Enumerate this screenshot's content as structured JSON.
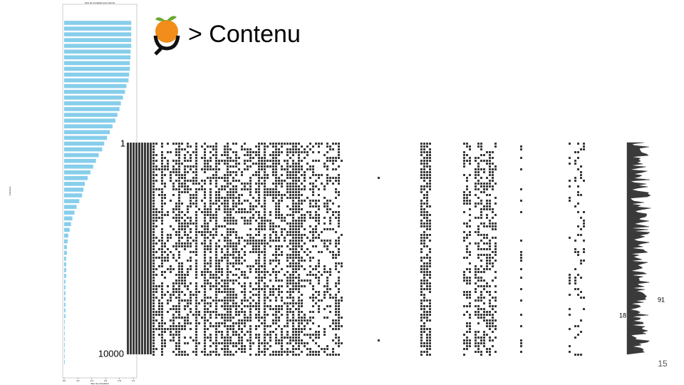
{
  "slide": {
    "title": "> Contenu",
    "page_number": "15"
  },
  "chart_data": {
    "type": "bar",
    "orientation": "horizontal",
    "title": "Taux de complétion par colonne",
    "x_label": "Taux de complétion",
    "y_label": "Colonnes",
    "categories": [
      null,
      null,
      null,
      null,
      null,
      null,
      null,
      null,
      null,
      null,
      null,
      null,
      null,
      null,
      null,
      null,
      null,
      null,
      null,
      null,
      null,
      null,
      null,
      null,
      null,
      null,
      null,
      null,
      null,
      null,
      null,
      null,
      null,
      null,
      null,
      null,
      null,
      null,
      null,
      null,
      null,
      null,
      null,
      null,
      null,
      null,
      null,
      null,
      null,
      null,
      null,
      null,
      null,
      null,
      null,
      null,
      null,
      null,
      null,
      null
    ],
    "values": [
      0.97,
      0.97,
      0.97,
      0.97,
      0.97,
      0.96,
      0.96,
      0.95,
      0.95,
      0.94,
      0.93,
      0.9,
      0.88,
      0.85,
      0.82,
      0.8,
      0.77,
      0.74,
      0.7,
      0.66,
      0.62,
      0.58,
      0.55,
      0.5,
      0.46,
      0.42,
      0.38,
      0.34,
      0.3,
      0.28,
      0.26,
      0.22,
      0.18,
      0.15,
      0.12,
      0.1,
      0.08,
      0.06,
      0.05,
      0.04,
      0.04,
      0.03,
      0.03,
      0.03,
      0.03,
      0.02,
      0.02,
      0.02,
      0.02,
      0.02,
      0.02,
      0.02,
      0.01,
      0.01,
      0.01,
      0.01,
      0.01,
      0.01,
      0.01,
      0.01
    ],
    "color": "#87ceeb",
    "xlim": [
      -0.02,
      1.05
    ],
    "xticks": [
      {
        "value": 0,
        "label": "0.0"
      },
      {
        "value": 0.2,
        "label": "0.2"
      },
      {
        "value": 0.4,
        "label": "0.4"
      },
      {
        "value": 0.6,
        "label": "0.6"
      },
      {
        "value": 0.8,
        "label": "0.8"
      },
      {
        "value": 1,
        "label": "1.0"
      }
    ]
  },
  "matrix": {
    "row_labels": [
      "1",
      "10000"
    ],
    "sparkline_labels": [
      "91",
      "18"
    ]
  }
}
